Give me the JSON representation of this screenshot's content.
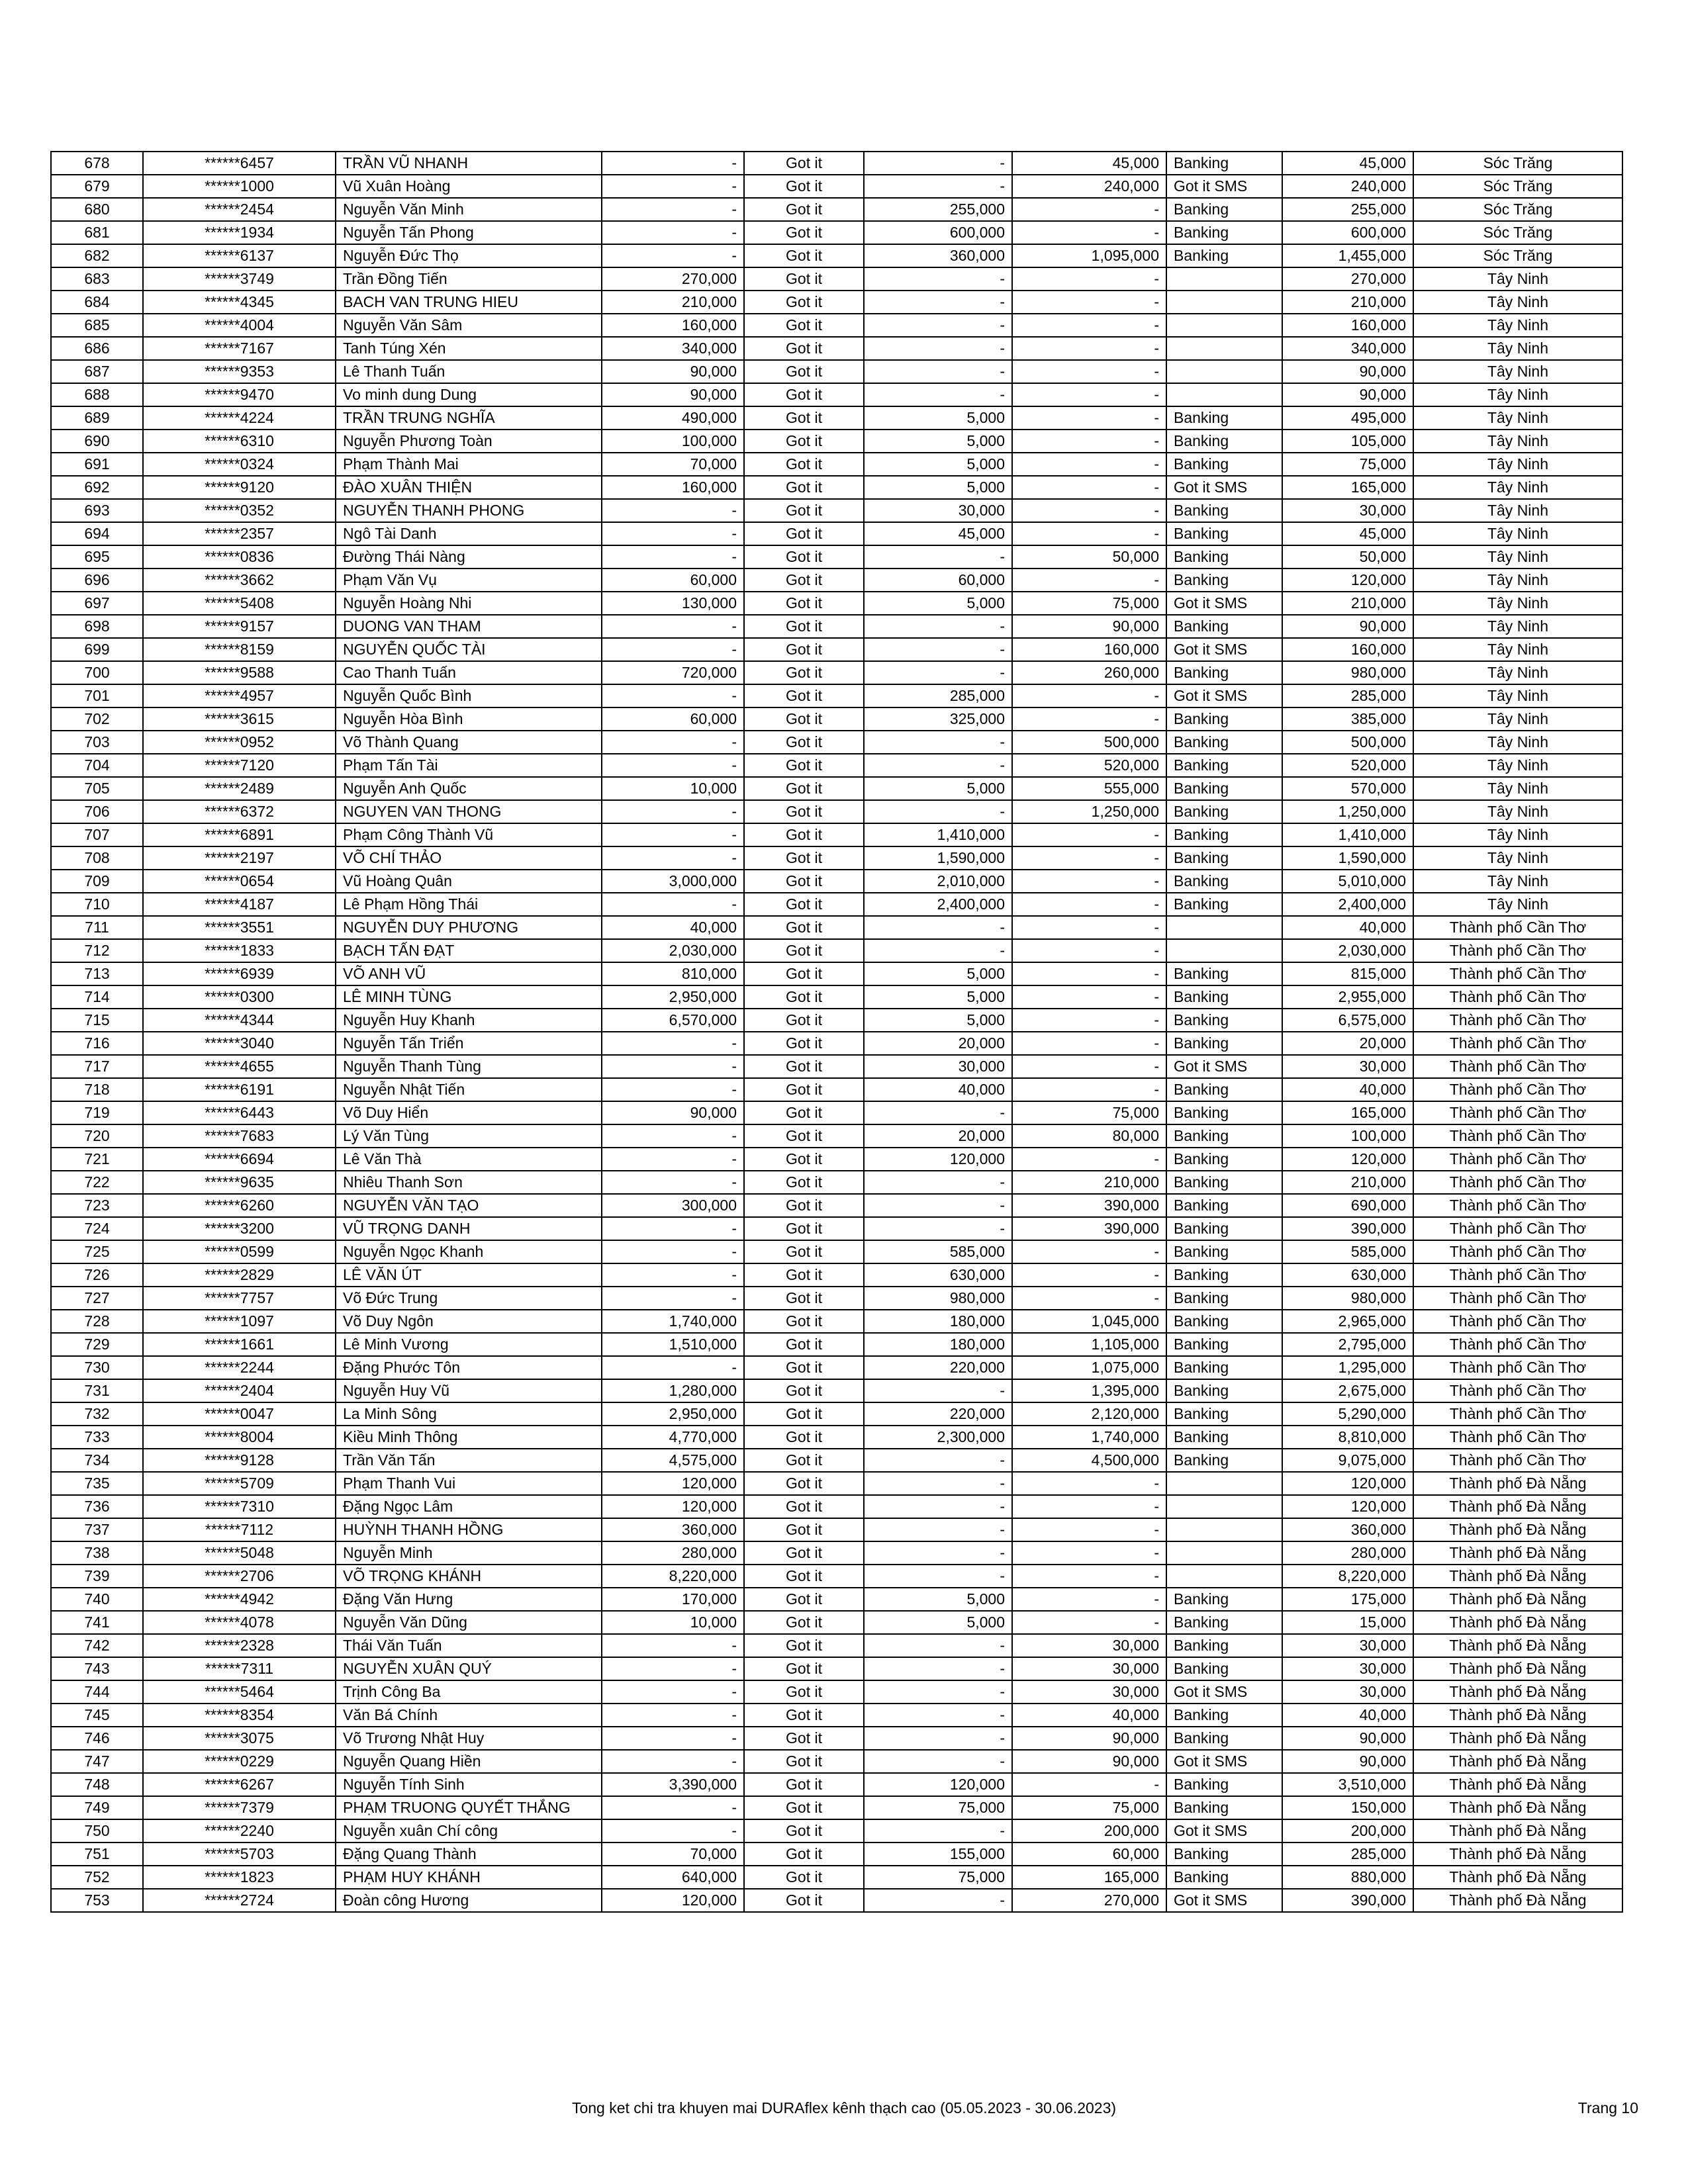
{
  "rows": [
    [
      "678",
      "******6457",
      "TRẦN VŨ NHANH",
      "-",
      "Got it",
      "-",
      "45,000",
      "Banking",
      "45,000",
      "Sóc Trăng"
    ],
    [
      "679",
      "******1000",
      "Vũ Xuân Hoàng",
      "-",
      "Got it",
      "-",
      "240,000",
      "Got it SMS",
      "240,000",
      "Sóc Trăng"
    ],
    [
      "680",
      "******2454",
      "Nguyễn Văn Minh",
      "-",
      "Got it",
      "255,000",
      "-",
      "Banking",
      "255,000",
      "Sóc Trăng"
    ],
    [
      "681",
      "******1934",
      "Nguyễn Tấn Phong",
      "-",
      "Got it",
      "600,000",
      "-",
      "Banking",
      "600,000",
      "Sóc Trăng"
    ],
    [
      "682",
      "******6137",
      "Nguyễn Đức Thọ",
      "-",
      "Got it",
      "360,000",
      "1,095,000",
      "Banking",
      "1,455,000",
      "Sóc Trăng"
    ],
    [
      "683",
      "******3749",
      "Trần Đồng Tiến",
      "270,000",
      "Got it",
      "-",
      "-",
      "",
      "270,000",
      "Tây Ninh"
    ],
    [
      "684",
      "******4345",
      "BACH VAN TRUNG HIEU",
      "210,000",
      "Got it",
      "-",
      "-",
      "",
      "210,000",
      "Tây Ninh"
    ],
    [
      "685",
      "******4004",
      "Nguyễn Văn Sâm",
      "160,000",
      "Got it",
      "-",
      "-",
      "",
      "160,000",
      "Tây Ninh"
    ],
    [
      "686",
      "******7167",
      "Tanh Túng Xén",
      "340,000",
      "Got it",
      "-",
      "-",
      "",
      "340,000",
      "Tây Ninh"
    ],
    [
      "687",
      "******9353",
      "Lê Thanh Tuấn",
      "90,000",
      "Got it",
      "-",
      "-",
      "",
      "90,000",
      "Tây Ninh"
    ],
    [
      "688",
      "******9470",
      "Vo minh dung Dung",
      "90,000",
      "Got it",
      "-",
      "-",
      "",
      "90,000",
      "Tây Ninh"
    ],
    [
      "689",
      "******4224",
      "TRẦN TRUNG NGHĨA",
      "490,000",
      "Got it",
      "5,000",
      "-",
      "Banking",
      "495,000",
      "Tây Ninh"
    ],
    [
      "690",
      "******6310",
      "Nguyễn Phương Toàn",
      "100,000",
      "Got it",
      "5,000",
      "-",
      "Banking",
      "105,000",
      "Tây Ninh"
    ],
    [
      "691",
      "******0324",
      "Phạm Thành Mai",
      "70,000",
      "Got it",
      "5,000",
      "-",
      "Banking",
      "75,000",
      "Tây Ninh"
    ],
    [
      "692",
      "******9120",
      "ĐÀO XUÂN THIỆN",
      "160,000",
      "Got it",
      "5,000",
      "-",
      "Got it SMS",
      "165,000",
      "Tây Ninh"
    ],
    [
      "693",
      "******0352",
      "NGUYỄN THANH PHONG",
      "-",
      "Got it",
      "30,000",
      "-",
      "Banking",
      "30,000",
      "Tây Ninh"
    ],
    [
      "694",
      "******2357",
      "Ngô Tài Danh",
      "-",
      "Got it",
      "45,000",
      "-",
      "Banking",
      "45,000",
      "Tây Ninh"
    ],
    [
      "695",
      "******0836",
      "Đường Thái Nàng",
      "-",
      "Got it",
      "-",
      "50,000",
      "Banking",
      "50,000",
      "Tây Ninh"
    ],
    [
      "696",
      "******3662",
      "Phạm Văn Vụ",
      "60,000",
      "Got it",
      "60,000",
      "-",
      "Banking",
      "120,000",
      "Tây Ninh"
    ],
    [
      "697",
      "******5408",
      "Nguyễn Hoàng Nhi",
      "130,000",
      "Got it",
      "5,000",
      "75,000",
      "Got it SMS",
      "210,000",
      "Tây Ninh"
    ],
    [
      "698",
      "******9157",
      "DUONG VAN THAM",
      "-",
      "Got it",
      "-",
      "90,000",
      "Banking",
      "90,000",
      "Tây Ninh"
    ],
    [
      "699",
      "******8159",
      "NGUYỄN QUỐC TÀI",
      "-",
      "Got it",
      "-",
      "160,000",
      "Got it SMS",
      "160,000",
      "Tây Ninh"
    ],
    [
      "700",
      "******9588",
      "Cao Thanh Tuấn",
      "720,000",
      "Got it",
      "-",
      "260,000",
      "Banking",
      "980,000",
      "Tây Ninh"
    ],
    [
      "701",
      "******4957",
      "Nguyễn Quốc Bình",
      "-",
      "Got it",
      "285,000",
      "-",
      "Got it SMS",
      "285,000",
      "Tây Ninh"
    ],
    [
      "702",
      "******3615",
      "Nguyễn Hòa Bình",
      "60,000",
      "Got it",
      "325,000",
      "-",
      "Banking",
      "385,000",
      "Tây Ninh"
    ],
    [
      "703",
      "******0952",
      "Võ Thành Quang",
      "-",
      "Got it",
      "-",
      "500,000",
      "Banking",
      "500,000",
      "Tây Ninh"
    ],
    [
      "704",
      "******7120",
      "Phạm Tấn Tài",
      "-",
      "Got it",
      "-",
      "520,000",
      "Banking",
      "520,000",
      "Tây Ninh"
    ],
    [
      "705",
      "******2489",
      "Nguyễn Anh Quốc",
      "10,000",
      "Got it",
      "5,000",
      "555,000",
      "Banking",
      "570,000",
      "Tây Ninh"
    ],
    [
      "706",
      "******6372",
      "NGUYEN VAN THONG",
      "-",
      "Got it",
      "-",
      "1,250,000",
      "Banking",
      "1,250,000",
      "Tây Ninh"
    ],
    [
      "707",
      "******6891",
      "Phạm Công Thành Vũ",
      "-",
      "Got it",
      "1,410,000",
      "-",
      "Banking",
      "1,410,000",
      "Tây Ninh"
    ],
    [
      "708",
      "******2197",
      "VÕ CHÍ THẢO",
      "-",
      "Got it",
      "1,590,000",
      "-",
      "Banking",
      "1,590,000",
      "Tây Ninh"
    ],
    [
      "709",
      "******0654",
      "Vũ Hoàng Quân",
      "3,000,000",
      "Got it",
      "2,010,000",
      "-",
      "Banking",
      "5,010,000",
      "Tây Ninh"
    ],
    [
      "710",
      "******4187",
      "Lê Phạm Hồng Thái",
      "-",
      "Got it",
      "2,400,000",
      "-",
      "Banking",
      "2,400,000",
      "Tây Ninh"
    ],
    [
      "711",
      "******3551",
      "NGUYỄN DUY PHƯƠNG",
      "40,000",
      "Got it",
      "-",
      "-",
      "",
      "40,000",
      "Thành phố Cần Thơ"
    ],
    [
      "712",
      "******1833",
      "BẠCH TẤN ĐẠT",
      "2,030,000",
      "Got it",
      "-",
      "-",
      "",
      "2,030,000",
      "Thành phố Cần Thơ"
    ],
    [
      "713",
      "******6939",
      "VÕ ANH VŨ",
      "810,000",
      "Got it",
      "5,000",
      "-",
      "Banking",
      "815,000",
      "Thành phố Cần Thơ"
    ],
    [
      "714",
      "******0300",
      "LÊ MINH TÙNG",
      "2,950,000",
      "Got it",
      "5,000",
      "-",
      "Banking",
      "2,955,000",
      "Thành phố Cần Thơ"
    ],
    [
      "715",
      "******4344",
      "Nguyễn Huy Khanh",
      "6,570,000",
      "Got it",
      "5,000",
      "-",
      "Banking",
      "6,575,000",
      "Thành phố Cần Thơ"
    ],
    [
      "716",
      "******3040",
      "Nguyễn Tấn Triển",
      "-",
      "Got it",
      "20,000",
      "-",
      "Banking",
      "20,000",
      "Thành phố Cần Thơ"
    ],
    [
      "717",
      "******4655",
      "Nguyễn Thanh Tùng",
      "-",
      "Got it",
      "30,000",
      "-",
      "Got it SMS",
      "30,000",
      "Thành phố Cần Thơ"
    ],
    [
      "718",
      "******6191",
      "Nguyễn Nhật Tiến",
      "-",
      "Got it",
      "40,000",
      "-",
      "Banking",
      "40,000",
      "Thành phố Cần Thơ"
    ],
    [
      "719",
      "******6443",
      "Võ Duy Hiển",
      "90,000",
      "Got it",
      "-",
      "75,000",
      "Banking",
      "165,000",
      "Thành phố Cần Thơ"
    ],
    [
      "720",
      "******7683",
      "Lý Văn Tùng",
      "-",
      "Got it",
      "20,000",
      "80,000",
      "Banking",
      "100,000",
      "Thành phố Cần Thơ"
    ],
    [
      "721",
      "******6694",
      "Lê Văn Thà",
      "-",
      "Got it",
      "120,000",
      "-",
      "Banking",
      "120,000",
      "Thành phố Cần Thơ"
    ],
    [
      "722",
      "******9635",
      "Nhiêu Thanh Sơn",
      "-",
      "Got it",
      "-",
      "210,000",
      "Banking",
      "210,000",
      "Thành phố Cần Thơ"
    ],
    [
      "723",
      "******6260",
      "NGUYỄN VĂN TẠO",
      "300,000",
      "Got it",
      "-",
      "390,000",
      "Banking",
      "690,000",
      "Thành phố Cần Thơ"
    ],
    [
      "724",
      "******3200",
      "VŨ TRỌNG DANH",
      "-",
      "Got it",
      "-",
      "390,000",
      "Banking",
      "390,000",
      "Thành phố Cần Thơ"
    ],
    [
      "725",
      "******0599",
      "Nguyễn Ngọc Khanh",
      "-",
      "Got it",
      "585,000",
      "-",
      "Banking",
      "585,000",
      "Thành phố Cần Thơ"
    ],
    [
      "726",
      "******2829",
      "LÊ VĂN ÚT",
      "-",
      "Got it",
      "630,000",
      "-",
      "Banking",
      "630,000",
      "Thành phố Cần Thơ"
    ],
    [
      "727",
      "******7757",
      "Võ Đức Trung",
      "-",
      "Got it",
      "980,000",
      "-",
      "Banking",
      "980,000",
      "Thành phố Cần Thơ"
    ],
    [
      "728",
      "******1097",
      "Võ Duy Ngôn",
      "1,740,000",
      "Got it",
      "180,000",
      "1,045,000",
      "Banking",
      "2,965,000",
      "Thành phố Cần Thơ"
    ],
    [
      "729",
      "******1661",
      "Lê Minh Vương",
      "1,510,000",
      "Got it",
      "180,000",
      "1,105,000",
      "Banking",
      "2,795,000",
      "Thành phố Cần Thơ"
    ],
    [
      "730",
      "******2244",
      "Đặng Phước Tôn",
      "-",
      "Got it",
      "220,000",
      "1,075,000",
      "Banking",
      "1,295,000",
      "Thành phố Cần Thơ"
    ],
    [
      "731",
      "******2404",
      "Nguyễn Huy Vũ",
      "1,280,000",
      "Got it",
      "-",
      "1,395,000",
      "Banking",
      "2,675,000",
      "Thành phố Cần Thơ"
    ],
    [
      "732",
      "******0047",
      "La Minh Sông",
      "2,950,000",
      "Got it",
      "220,000",
      "2,120,000",
      "Banking",
      "5,290,000",
      "Thành phố Cần Thơ"
    ],
    [
      "733",
      "******8004",
      "Kiều Minh Thông",
      "4,770,000",
      "Got it",
      "2,300,000",
      "1,740,000",
      "Banking",
      "8,810,000",
      "Thành phố Cần Thơ"
    ],
    [
      "734",
      "******9128",
      "Trần Văn Tấn",
      "4,575,000",
      "Got it",
      "-",
      "4,500,000",
      "Banking",
      "9,075,000",
      "Thành phố Cần Thơ"
    ],
    [
      "735",
      "******5709",
      "Phạm Thanh Vui",
      "120,000",
      "Got it",
      "-",
      "-",
      "",
      "120,000",
      "Thành phố Đà Nẵng"
    ],
    [
      "736",
      "******7310",
      "Đặng Ngọc Lâm",
      "120,000",
      "Got it",
      "-",
      "-",
      "",
      "120,000",
      "Thành phố Đà Nẵng"
    ],
    [
      "737",
      "******7112",
      "HUỲNH THANH HỒNG",
      "360,000",
      "Got it",
      "-",
      "-",
      "",
      "360,000",
      "Thành phố Đà Nẵng"
    ],
    [
      "738",
      "******5048",
      "Nguyễn Minh",
      "280,000",
      "Got it",
      "-",
      "-",
      "",
      "280,000",
      "Thành phố Đà Nẵng"
    ],
    [
      "739",
      "******2706",
      "VÕ TRỌNG KHÁNH",
      "8,220,000",
      "Got it",
      "-",
      "-",
      "",
      "8,220,000",
      "Thành phố Đà Nẵng"
    ],
    [
      "740",
      "******4942",
      "Đặng Văn  Hưng",
      "170,000",
      "Got it",
      "5,000",
      "-",
      "Banking",
      "175,000",
      "Thành phố Đà Nẵng"
    ],
    [
      "741",
      "******4078",
      "Nguyễn Văn Dũng",
      "10,000",
      "Got it",
      "5,000",
      "-",
      "Banking",
      "15,000",
      "Thành phố Đà Nẵng"
    ],
    [
      "742",
      "******2328",
      "Thái Văn Tuấn",
      "-",
      "Got it",
      "-",
      "30,000",
      "Banking",
      "30,000",
      "Thành phố Đà Nẵng"
    ],
    [
      "743",
      "******7311",
      "NGUYỄN XUÂN QUÝ",
      "-",
      "Got it",
      "-",
      "30,000",
      "Banking",
      "30,000",
      "Thành phố Đà Nẵng"
    ],
    [
      "744",
      "******5464",
      "Trịnh Công Ba",
      "-",
      "Got it",
      "-",
      "30,000",
      "Got it SMS",
      "30,000",
      "Thành phố Đà Nẵng"
    ],
    [
      "745",
      "******8354",
      "Văn Bá Chính",
      "-",
      "Got it",
      "-",
      "40,000",
      "Banking",
      "40,000",
      "Thành phố Đà Nẵng"
    ],
    [
      "746",
      "******3075",
      "Võ Trương Nhật Huy",
      "-",
      "Got it",
      "-",
      "90,000",
      "Banking",
      "90,000",
      "Thành phố Đà Nẵng"
    ],
    [
      "747",
      "******0229",
      "Nguyễn Quang Hiền",
      "-",
      "Got it",
      "-",
      "90,000",
      "Got it SMS",
      "90,000",
      "Thành phố Đà Nẵng"
    ],
    [
      "748",
      "******6267",
      "Nguyễn Tính Sinh",
      "3,390,000",
      "Got it",
      "120,000",
      "-",
      "Banking",
      "3,510,000",
      "Thành phố Đà Nẵng"
    ],
    [
      "749",
      "******7379",
      "PHẠM TRUONG QUYẾT THẮNG",
      "-",
      "Got it",
      "75,000",
      "75,000",
      "Banking",
      "150,000",
      "Thành phố Đà Nẵng"
    ],
    [
      "750",
      "******2240",
      "Nguyễn xuân Chí công",
      "-",
      "Got it",
      "-",
      "200,000",
      "Got it SMS",
      "200,000",
      "Thành phố Đà Nẵng"
    ],
    [
      "751",
      "******5703",
      "Đặng Quang Thành",
      "70,000",
      "Got it",
      "155,000",
      "60,000",
      "Banking",
      "285,000",
      "Thành phố Đà Nẵng"
    ],
    [
      "752",
      "******1823",
      "PHẠM HUY KHÁNH",
      "640,000",
      "Got it",
      "75,000",
      "165,000",
      "Banking",
      "880,000",
      "Thành phố Đà Nẵng"
    ],
    [
      "753",
      "******2724",
      "Đoàn công Hương",
      "120,000",
      "Got it",
      "-",
      "270,000",
      "Got it SMS",
      "390,000",
      "Thành phố Đà Nẵng"
    ]
  ],
  "footer": {
    "title": "Tong ket chi tra khuyen mai DURAflex kênh thạch cao (05.05.2023 - 30.06.2023)",
    "page": "Trang 10"
  }
}
